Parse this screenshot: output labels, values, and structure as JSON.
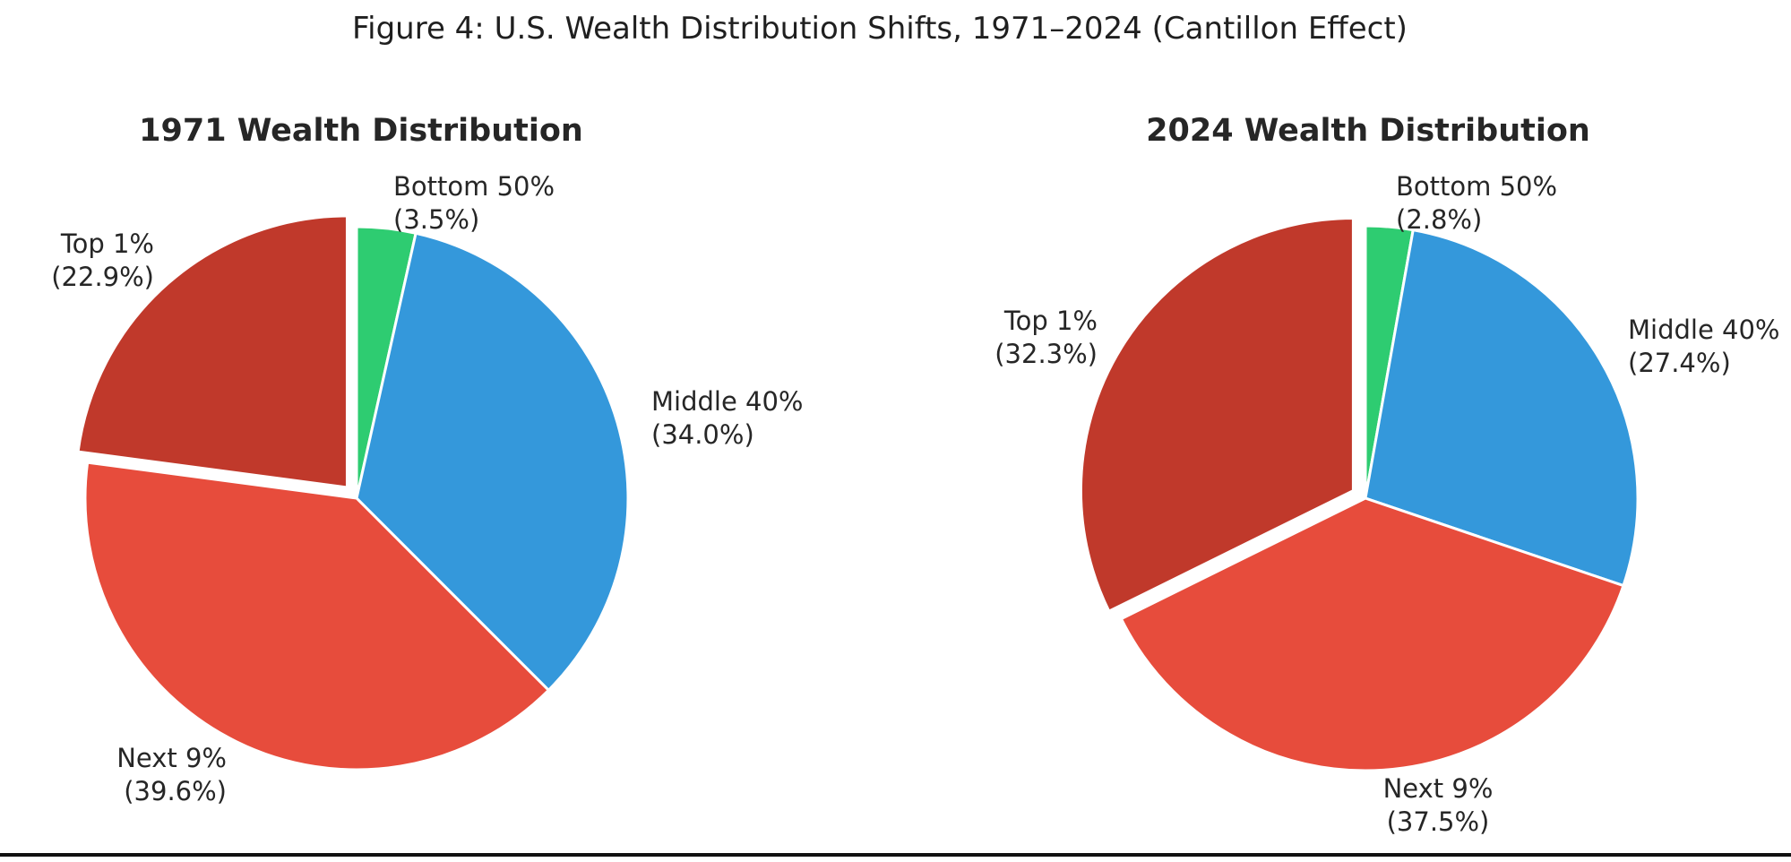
{
  "figure_title": "Figure 4: U.S. Wealth Distribution Shifts, 1971–2024 (Cantillon Effect)",
  "text_color": "#262626",
  "palette": {
    "bottom_50": "#2ecc71",
    "middle_40": "#3498db",
    "next_9": "#e74c3c",
    "top_1": "#c0392b"
  },
  "chart_data": [
    {
      "type": "pie",
      "id": "1971",
      "title": "1971 Wealth Distribution",
      "start_angle": "12-oclock",
      "direction": "clockwise",
      "slices": [
        {
          "label": "Bottom 50%",
          "pct": 3.5,
          "pct_label": "(3.5%)",
          "color": "#2ecc71",
          "exploded": false
        },
        {
          "label": "Middle 40%",
          "pct": 34.0,
          "pct_label": "(34.0%)",
          "color": "#3498db",
          "exploded": false
        },
        {
          "label": "Next 9%",
          "pct": 39.6,
          "pct_label": "(39.6%)",
          "color": "#e74c3c",
          "exploded": false
        },
        {
          "label": "Top 1%",
          "pct": 22.9,
          "pct_label": "(22.9%)",
          "color": "#c0392b",
          "exploded": true
        }
      ]
    },
    {
      "type": "pie",
      "id": "2024",
      "title": "2024 Wealth Distribution",
      "start_angle": "12-oclock",
      "direction": "clockwise",
      "slices": [
        {
          "label": "Bottom 50%",
          "pct": 2.8,
          "pct_label": "(2.8%)",
          "color": "#2ecc71",
          "exploded": false
        },
        {
          "label": "Middle 40%",
          "pct": 27.4,
          "pct_label": "(27.4%)",
          "color": "#3498db",
          "exploded": false
        },
        {
          "label": "Next 9%",
          "pct": 37.5,
          "pct_label": "(37.5%)",
          "color": "#e74c3c",
          "exploded": false
        },
        {
          "label": "Top 1%",
          "pct": 32.3,
          "pct_label": "(32.3%)",
          "color": "#c0392b",
          "exploded": true
        }
      ]
    }
  ]
}
